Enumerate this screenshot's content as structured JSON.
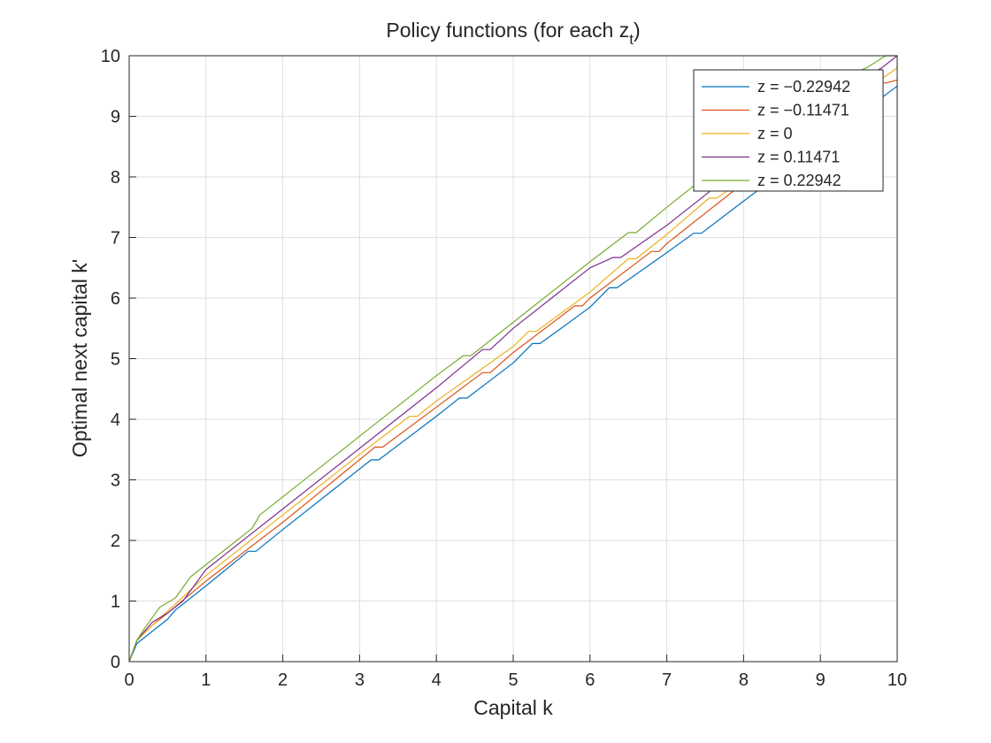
{
  "chart_data": {
    "type": "line",
    "title": "Policy functions (for each z",
    "title_subscript": "t",
    "title_suffix": ")",
    "xlabel": "Capital k",
    "ylabel": "Optimal next capital k'",
    "xlim": [
      0,
      10
    ],
    "ylim": [
      0,
      10
    ],
    "xticks": [
      0,
      1,
      2,
      3,
      4,
      5,
      6,
      7,
      8,
      9,
      10
    ],
    "yticks": [
      0,
      1,
      2,
      3,
      4,
      5,
      6,
      7,
      8,
      9,
      10
    ],
    "grid": true,
    "legend_position": "top-right",
    "series": [
      {
        "name": "z = −0.22942",
        "color": "#0072BD",
        "x": [
          0,
          0.1,
          0.5,
          0.6,
          1.0,
          1.55,
          1.65,
          2.0,
          3.15,
          3.25,
          4.0,
          4.3,
          4.4,
          5.0,
          5.25,
          5.35,
          6.0,
          6.25,
          6.35,
          7.0,
          7.35,
          7.45,
          8.0,
          9.0,
          10.0
        ],
        "y": [
          0,
          0.3,
          0.7,
          0.85,
          1.25,
          1.82,
          1.82,
          2.18,
          3.33,
          3.33,
          4.05,
          4.35,
          4.35,
          4.93,
          5.25,
          5.25,
          5.85,
          6.17,
          6.17,
          6.75,
          7.07,
          7.07,
          7.6,
          8.55,
          9.5
        ]
      },
      {
        "name": "z = −0.11471",
        "color": "#D95319",
        "x": [
          0,
          0.1,
          0.3,
          0.5,
          1.0,
          2.0,
          3.2,
          3.3,
          4.0,
          4.6,
          4.7,
          5.0,
          5.8,
          5.9,
          6.0,
          6.8,
          6.9,
          7.0,
          8.0,
          9.0,
          9.75,
          9.85,
          10.0
        ],
        "y": [
          0,
          0.35,
          0.6,
          0.8,
          1.33,
          2.3,
          3.54,
          3.54,
          4.2,
          4.77,
          4.77,
          5.1,
          5.87,
          5.87,
          6.0,
          6.77,
          6.77,
          6.9,
          7.9,
          8.85,
          9.55,
          9.55,
          9.6
        ]
      },
      {
        "name": "z = 0",
        "color": "#EDB120",
        "x": [
          0,
          0.1,
          0.4,
          0.6,
          1.0,
          2.0,
          3.0,
          3.65,
          3.75,
          4.0,
          5.0,
          5.2,
          5.3,
          6.0,
          6.5,
          6.6,
          7.0,
          7.55,
          7.65,
          8.0,
          9.0,
          10.0
        ],
        "y": [
          0,
          0.35,
          0.72,
          0.95,
          1.42,
          2.42,
          3.42,
          4.05,
          4.05,
          4.3,
          5.2,
          5.45,
          5.45,
          6.1,
          6.65,
          6.65,
          7.05,
          7.65,
          7.65,
          7.95,
          8.9,
          9.8
        ]
      },
      {
        "name": "z = 0.11471",
        "color": "#7E2F8E",
        "x": [
          0,
          0.1,
          0.3,
          0.5,
          0.7,
          1.0,
          2.0,
          3.0,
          4.0,
          4.6,
          4.7,
          5.0,
          6.0,
          6.3,
          6.4,
          7.0,
          8.0,
          9.0,
          9.8,
          10.0
        ],
        "y": [
          0,
          0.35,
          0.65,
          0.8,
          1.0,
          1.52,
          2.52,
          3.52,
          4.52,
          5.15,
          5.15,
          5.5,
          6.5,
          6.67,
          6.67,
          7.2,
          8.2,
          9.2,
          9.8,
          10.0
        ]
      },
      {
        "name": "z = 0.22942",
        "color": "#77AC30",
        "x": [
          0,
          0.1,
          0.2,
          0.4,
          0.6,
          0.8,
          1.0,
          1.6,
          1.7,
          2.0,
          3.0,
          4.0,
          4.35,
          4.45,
          5.0,
          6.0,
          6.5,
          6.6,
          7.0,
          8.0,
          8.3,
          9.5,
          9.6,
          9.85,
          10.0
        ],
        "y": [
          0,
          0.35,
          0.55,
          0.9,
          1.05,
          1.4,
          1.6,
          2.2,
          2.42,
          2.72,
          3.72,
          4.72,
          5.05,
          5.05,
          5.6,
          6.6,
          7.08,
          7.08,
          7.5,
          8.5,
          8.8,
          9.75,
          9.8,
          10.0,
          10.0
        ]
      }
    ]
  }
}
